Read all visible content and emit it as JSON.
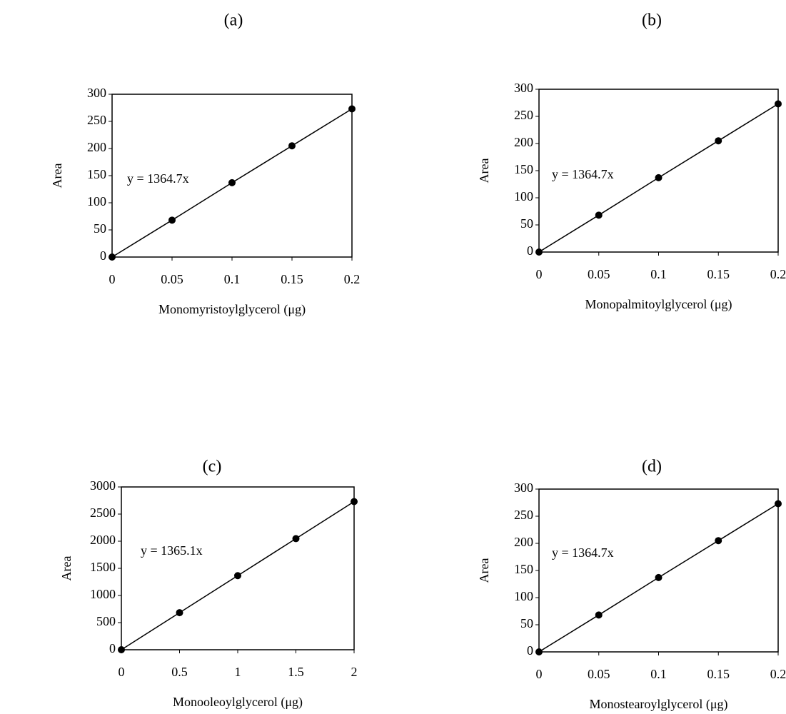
{
  "chart_data": [
    {
      "type": "scatter",
      "title": "(a)",
      "x_label": "Monomyristoylglycerol (μg)",
      "y_label": "Area",
      "annotation": "y = 1364.7x",
      "x": [
        0,
        0.05,
        0.1,
        0.15,
        0.2
      ],
      "values": [
        0,
        68,
        137,
        205,
        273
      ],
      "color": "#000000",
      "xlim": [
        0,
        0.2
      ],
      "xticks": [
        0,
        0.05,
        0.1,
        0.15,
        0.2
      ],
      "ylim": [
        0,
        300
      ],
      "yticks": [
        0,
        50,
        100,
        150,
        200,
        250,
        300
      ]
    },
    {
      "type": "scatter",
      "title": "(b)",
      "x_label": "Monopalmitoylglycerol (μg)",
      "y_label": "Area",
      "annotation": "y = 1364.7x",
      "x": [
        0,
        0.05,
        0.1,
        0.15,
        0.2
      ],
      "values": [
        0,
        68,
        137,
        205,
        273
      ],
      "color": "#000000",
      "xlim": [
        0,
        0.2
      ],
      "xticks": [
        0,
        0.05,
        0.1,
        0.15,
        0.2
      ],
      "ylim": [
        0,
        300
      ],
      "yticks": [
        0,
        50,
        100,
        150,
        200,
        250,
        300
      ]
    },
    {
      "type": "scatter",
      "title": "(c)",
      "x_label": "Monooleoylglycerol (μg)",
      "y_label": "Area",
      "annotation": "y = 1365.1x",
      "x": [
        0,
        0.5,
        1,
        1.5,
        2
      ],
      "values": [
        0,
        683,
        1365,
        2048,
        2730
      ],
      "color": "#000000",
      "xlim": [
        0,
        2
      ],
      "xticks": [
        0,
        0.5,
        1,
        1.5,
        2
      ],
      "ylim": [
        0,
        3000
      ],
      "yticks": [
        0,
        500,
        1000,
        1500,
        2000,
        2500,
        3000
      ]
    },
    {
      "type": "scatter",
      "title": "(d)",
      "x_label": "Monostearoylglycerol (μg)",
      "y_label": "Area",
      "annotation": "y = 1364.7x",
      "x": [
        0,
        0.05,
        0.1,
        0.15,
        0.2
      ],
      "values": [
        0,
        68,
        137,
        205,
        273
      ],
      "color": "#000000",
      "xlim": [
        0,
        0.2
      ],
      "xticks": [
        0,
        0.05,
        0.1,
        0.15,
        0.2
      ],
      "ylim": [
        0,
        300
      ],
      "yticks": [
        0,
        50,
        100,
        150,
        200,
        250,
        300
      ]
    }
  ]
}
